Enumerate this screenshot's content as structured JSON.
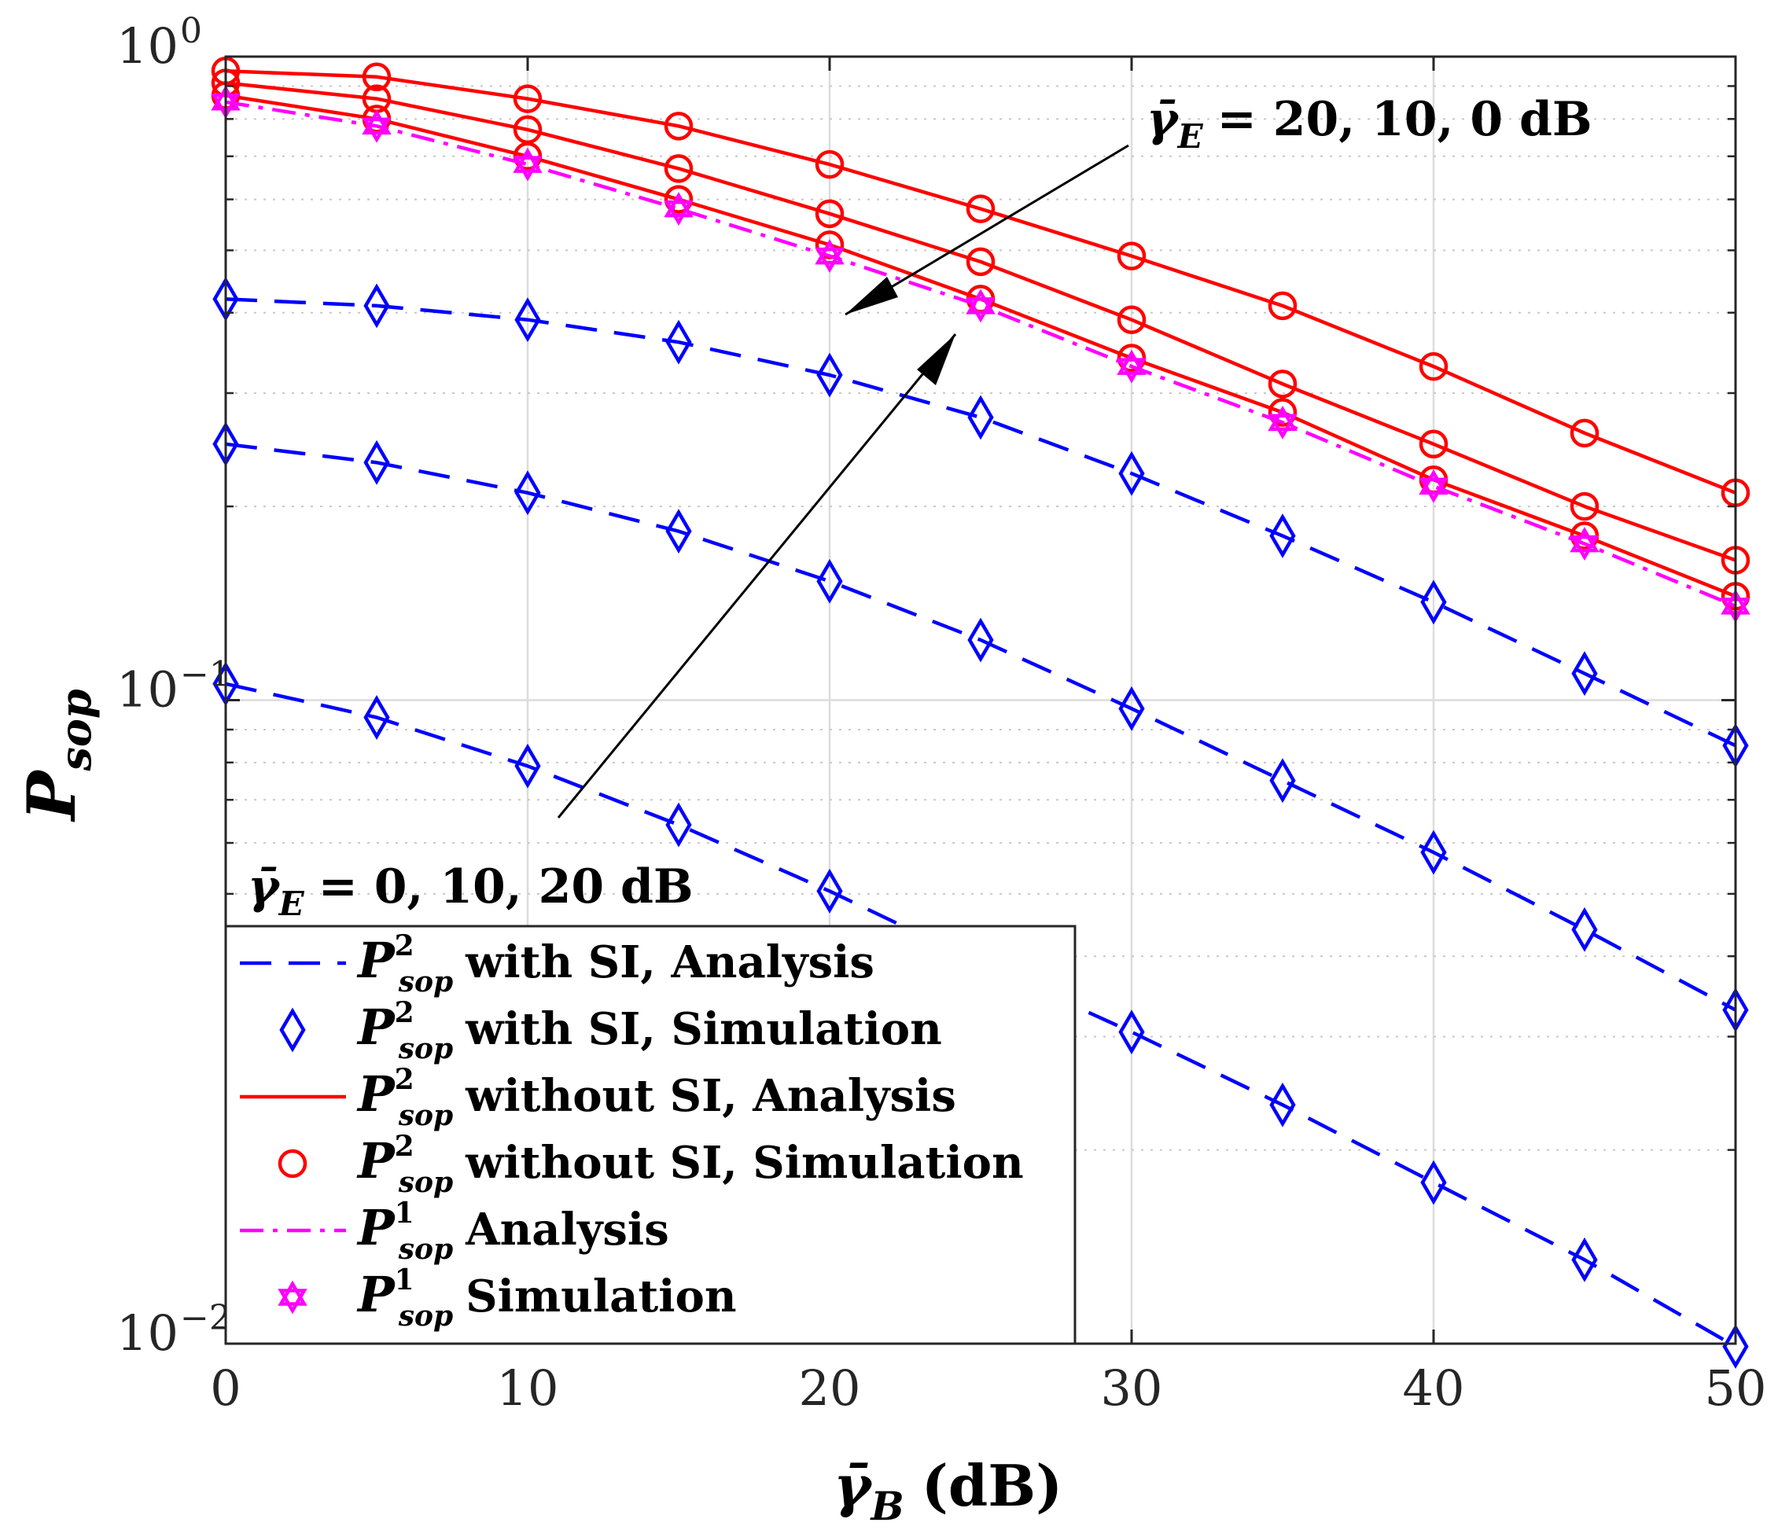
{
  "chart_data": {
    "type": "line",
    "x_axis": {
      "label_symbol": "γ̄",
      "label_subscript": "B",
      "label_unit": "(dB)",
      "lim": [
        0,
        50
      ],
      "ticks": [
        0,
        10,
        20,
        30,
        40,
        50
      ]
    },
    "y_axis": {
      "label_symbol": "P",
      "label_subscript": "sop",
      "scale": "log",
      "lim": [
        0.01,
        1
      ],
      "ticks": [
        {
          "value": 1,
          "base": "10",
          "exp": "0"
        },
        {
          "value": 0.1,
          "base": "10",
          "exp": "−1"
        },
        {
          "value": 0.01,
          "base": "10",
          "exp": "−2"
        }
      ]
    },
    "grid": true,
    "x": [
      0,
      5,
      10,
      15,
      20,
      25,
      30,
      35,
      40,
      45,
      50
    ],
    "series": [
      {
        "group": "P2 without SI",
        "gamma_E_dB": 20,
        "color": "#ff0000",
        "line": "solid",
        "marker": "circle",
        "values": [
          0.95,
          0.93,
          0.86,
          0.78,
          0.68,
          0.58,
          0.49,
          0.41,
          0.33,
          0.26,
          0.21
        ]
      },
      {
        "group": "P2 without SI",
        "gamma_E_dB": 10,
        "color": "#ff0000",
        "line": "solid",
        "marker": "circle",
        "values": [
          0.91,
          0.86,
          0.77,
          0.67,
          0.57,
          0.48,
          0.39,
          0.31,
          0.25,
          0.2,
          0.165
        ]
      },
      {
        "group": "P2 without SI",
        "gamma_E_dB": 0,
        "color": "#ff0000",
        "line": "solid",
        "marker": "circle",
        "values": [
          0.87,
          0.8,
          0.7,
          0.6,
          0.51,
          0.42,
          0.34,
          0.28,
          0.22,
          0.18,
          0.145
        ]
      },
      {
        "group": "P1",
        "color": "#ff00ff",
        "line": "dashdot",
        "marker": "hexagram",
        "values": [
          0.85,
          0.78,
          0.68,
          0.58,
          0.49,
          0.41,
          0.33,
          0.27,
          0.215,
          0.175,
          0.14
        ]
      },
      {
        "group": "P2 with SI",
        "gamma_E_dB": 0,
        "color": "#0000ff",
        "line": "dashed",
        "marker": "diamond",
        "values": [
          0.42,
          0.41,
          0.39,
          0.36,
          0.32,
          0.275,
          0.225,
          0.18,
          0.142,
          0.11,
          0.085
        ]
      },
      {
        "group": "P2 with SI",
        "gamma_E_dB": 10,
        "color": "#0000ff",
        "line": "dashed",
        "marker": "diamond",
        "values": [
          0.25,
          0.234,
          0.21,
          0.183,
          0.153,
          0.124,
          0.097,
          0.075,
          0.058,
          0.044,
          0.033
        ]
      },
      {
        "group": "P2 with SI",
        "gamma_E_dB": 20,
        "color": "#0000ff",
        "line": "dashed",
        "marker": "diamond",
        "values": [
          0.106,
          0.094,
          0.079,
          0.064,
          0.0505,
          0.039,
          0.0305,
          0.0235,
          0.0178,
          0.0135,
          0.0099
        ]
      }
    ],
    "legend": {
      "position": "bottom-left",
      "entries": [
        {
          "style": "dashed",
          "color": "#0000ff",
          "base": "P",
          "sup": "2",
          "sub": "sop",
          "text": "with SI, Analysis"
        },
        {
          "style": "diamond",
          "color": "#0000ff",
          "base": "P",
          "sup": "2",
          "sub": "sop",
          "text": "with SI, Simulation"
        },
        {
          "style": "solid",
          "color": "#ff0000",
          "base": "P",
          "sup": "2",
          "sub": "sop",
          "text": "without SI, Analysis"
        },
        {
          "style": "circle",
          "color": "#ff0000",
          "base": "P",
          "sup": "2",
          "sub": "sop",
          "text": "without SI, Simulation"
        },
        {
          "style": "dashdot",
          "color": "#ff00ff",
          "base": "P",
          "sup": "1",
          "sub": "sop",
          "text": "Analysis"
        },
        {
          "style": "hexagram",
          "color": "#ff00ff",
          "base": "P",
          "sup": "1",
          "sub": "sop",
          "text": "Simulation"
        }
      ]
    },
    "annotations": [
      {
        "symbol": "γ̄",
        "sub": "E",
        "text": "= 20, 10, 0 dB"
      },
      {
        "symbol": "γ̄",
        "sub": "E",
        "text": "= 0, 10, 20 dB"
      }
    ]
  }
}
